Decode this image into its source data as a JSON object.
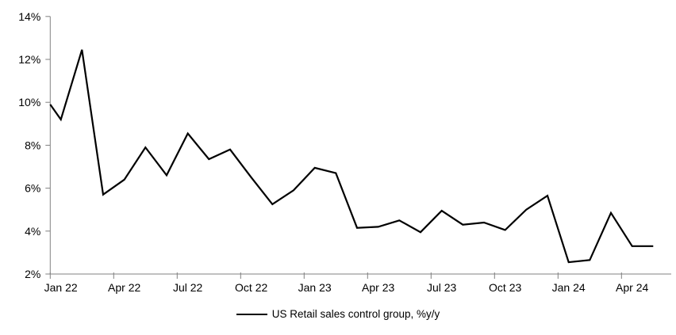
{
  "chart_data": {
    "type": "line",
    "title": "",
    "xlabel": "",
    "ylabel": "",
    "grid": false,
    "legend_position": "bottom-center",
    "background_color": "#ffffff",
    "axis_color": "#808080",
    "text_color": "#000000",
    "ylim": [
      2,
      14
    ],
    "y_tick_values": [
      14,
      12,
      10,
      8,
      6,
      4,
      2
    ],
    "y_tick_labels": [
      "14%",
      "12%",
      "10%",
      "8%",
      "6%",
      "4%",
      "2%"
    ],
    "x_tick_labels": [
      "Jan 22",
      "Apr 22",
      "Jul 22",
      "Oct 22",
      "Jan 23",
      "Apr 23",
      "Jul 23",
      "Oct 23",
      "Jan 24",
      "Apr 24"
    ],
    "x": [
      "Jan 22",
      "Feb 22",
      "Mar 22",
      "Apr 22",
      "May 22",
      "Jun 22",
      "Jul 22",
      "Aug 22",
      "Sep 22",
      "Oct 22",
      "Nov 22",
      "Dec 22",
      "Jan 23",
      "Feb 23",
      "Mar 23",
      "Apr 23",
      "May 23",
      "Jun 23",
      "Jul 23",
      "Aug 23",
      "Sep 23",
      "Oct 23",
      "Nov 23",
      "Dec 23",
      "Jan 24",
      "Feb 24",
      "Mar 24",
      "Apr 24",
      "May 24"
    ],
    "series": [
      {
        "name": "US Retail sales control group, %y/y",
        "color": "#000000",
        "axis_entry_value": 9.9,
        "values": [
          9.2,
          12.45,
          5.7,
          6.4,
          7.9,
          6.6,
          8.55,
          7.35,
          7.8,
          6.5,
          5.25,
          5.9,
          6.95,
          6.7,
          4.15,
          4.2,
          4.5,
          3.95,
          4.95,
          4.3,
          4.4,
          4.05,
          5.0,
          5.65,
          2.55,
          2.65,
          4.85,
          3.3,
          3.3
        ]
      }
    ],
    "legend": [
      {
        "label": "US Retail sales control group, %y/y",
        "color": "#000000"
      }
    ],
    "note": "Line enters the plot at the left (Jan 22) axis at ~9.9%; no gridlines; black 2px series line; gray axes with outside tick marks every 3 months."
  }
}
